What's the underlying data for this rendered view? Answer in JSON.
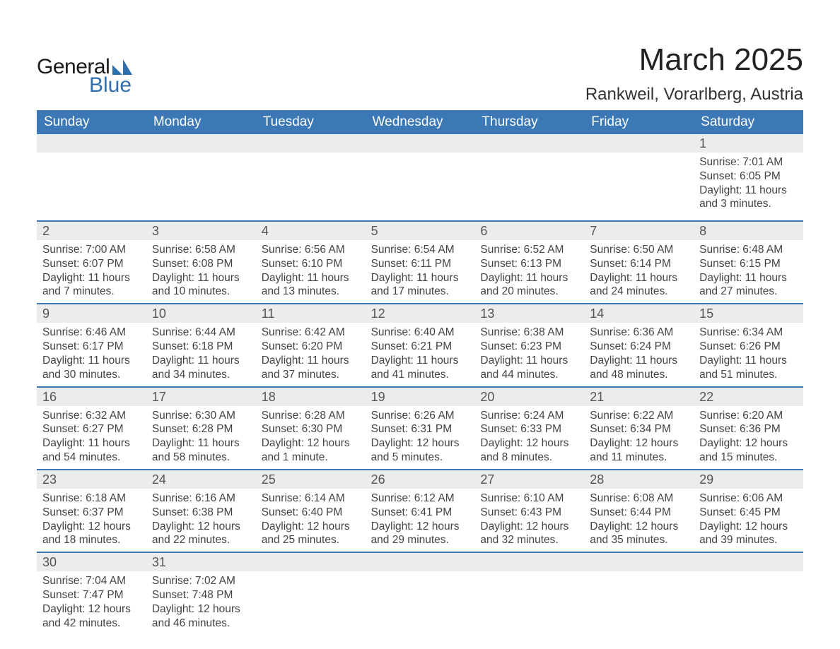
{
  "logo": {
    "text_general": "General",
    "text_blue": "Blue",
    "mark_color": "#2f6fae"
  },
  "title": "March 2025",
  "location": "Rankweil, Vorarlberg, Austria",
  "colors": {
    "header_bg": "#3b78b5",
    "header_text": "#ffffff",
    "daynum_bg": "#ececec",
    "border": "#3b78b5",
    "body_text": "#444444",
    "page_bg": "#ffffff"
  },
  "fonts": {
    "title_size_pt": 33,
    "location_size_pt": 18,
    "weekday_size_pt": 14,
    "cell_size_pt": 12
  },
  "weekdays": [
    "Sunday",
    "Monday",
    "Tuesday",
    "Wednesday",
    "Thursday",
    "Friday",
    "Saturday"
  ],
  "weeks": [
    [
      null,
      null,
      null,
      null,
      null,
      null,
      {
        "n": "1",
        "sr": "Sunrise: 7:01 AM",
        "ss": "Sunset: 6:05 PM",
        "d1": "Daylight: 11 hours",
        "d2": "and 3 minutes."
      }
    ],
    [
      {
        "n": "2",
        "sr": "Sunrise: 7:00 AM",
        "ss": "Sunset: 6:07 PM",
        "d1": "Daylight: 11 hours",
        "d2": "and 7 minutes."
      },
      {
        "n": "3",
        "sr": "Sunrise: 6:58 AM",
        "ss": "Sunset: 6:08 PM",
        "d1": "Daylight: 11 hours",
        "d2": "and 10 minutes."
      },
      {
        "n": "4",
        "sr": "Sunrise: 6:56 AM",
        "ss": "Sunset: 6:10 PM",
        "d1": "Daylight: 11 hours",
        "d2": "and 13 minutes."
      },
      {
        "n": "5",
        "sr": "Sunrise: 6:54 AM",
        "ss": "Sunset: 6:11 PM",
        "d1": "Daylight: 11 hours",
        "d2": "and 17 minutes."
      },
      {
        "n": "6",
        "sr": "Sunrise: 6:52 AM",
        "ss": "Sunset: 6:13 PM",
        "d1": "Daylight: 11 hours",
        "d2": "and 20 minutes."
      },
      {
        "n": "7",
        "sr": "Sunrise: 6:50 AM",
        "ss": "Sunset: 6:14 PM",
        "d1": "Daylight: 11 hours",
        "d2": "and 24 minutes."
      },
      {
        "n": "8",
        "sr": "Sunrise: 6:48 AM",
        "ss": "Sunset: 6:15 PM",
        "d1": "Daylight: 11 hours",
        "d2": "and 27 minutes."
      }
    ],
    [
      {
        "n": "9",
        "sr": "Sunrise: 6:46 AM",
        "ss": "Sunset: 6:17 PM",
        "d1": "Daylight: 11 hours",
        "d2": "and 30 minutes."
      },
      {
        "n": "10",
        "sr": "Sunrise: 6:44 AM",
        "ss": "Sunset: 6:18 PM",
        "d1": "Daylight: 11 hours",
        "d2": "and 34 minutes."
      },
      {
        "n": "11",
        "sr": "Sunrise: 6:42 AM",
        "ss": "Sunset: 6:20 PM",
        "d1": "Daylight: 11 hours",
        "d2": "and 37 minutes."
      },
      {
        "n": "12",
        "sr": "Sunrise: 6:40 AM",
        "ss": "Sunset: 6:21 PM",
        "d1": "Daylight: 11 hours",
        "d2": "and 41 minutes."
      },
      {
        "n": "13",
        "sr": "Sunrise: 6:38 AM",
        "ss": "Sunset: 6:23 PM",
        "d1": "Daylight: 11 hours",
        "d2": "and 44 minutes."
      },
      {
        "n": "14",
        "sr": "Sunrise: 6:36 AM",
        "ss": "Sunset: 6:24 PM",
        "d1": "Daylight: 11 hours",
        "d2": "and 48 minutes."
      },
      {
        "n": "15",
        "sr": "Sunrise: 6:34 AM",
        "ss": "Sunset: 6:26 PM",
        "d1": "Daylight: 11 hours",
        "d2": "and 51 minutes."
      }
    ],
    [
      {
        "n": "16",
        "sr": "Sunrise: 6:32 AM",
        "ss": "Sunset: 6:27 PM",
        "d1": "Daylight: 11 hours",
        "d2": "and 54 minutes."
      },
      {
        "n": "17",
        "sr": "Sunrise: 6:30 AM",
        "ss": "Sunset: 6:28 PM",
        "d1": "Daylight: 11 hours",
        "d2": "and 58 minutes."
      },
      {
        "n": "18",
        "sr": "Sunrise: 6:28 AM",
        "ss": "Sunset: 6:30 PM",
        "d1": "Daylight: 12 hours",
        "d2": "and 1 minute."
      },
      {
        "n": "19",
        "sr": "Sunrise: 6:26 AM",
        "ss": "Sunset: 6:31 PM",
        "d1": "Daylight: 12 hours",
        "d2": "and 5 minutes."
      },
      {
        "n": "20",
        "sr": "Sunrise: 6:24 AM",
        "ss": "Sunset: 6:33 PM",
        "d1": "Daylight: 12 hours",
        "d2": "and 8 minutes."
      },
      {
        "n": "21",
        "sr": "Sunrise: 6:22 AM",
        "ss": "Sunset: 6:34 PM",
        "d1": "Daylight: 12 hours",
        "d2": "and 11 minutes."
      },
      {
        "n": "22",
        "sr": "Sunrise: 6:20 AM",
        "ss": "Sunset: 6:36 PM",
        "d1": "Daylight: 12 hours",
        "d2": "and 15 minutes."
      }
    ],
    [
      {
        "n": "23",
        "sr": "Sunrise: 6:18 AM",
        "ss": "Sunset: 6:37 PM",
        "d1": "Daylight: 12 hours",
        "d2": "and 18 minutes."
      },
      {
        "n": "24",
        "sr": "Sunrise: 6:16 AM",
        "ss": "Sunset: 6:38 PM",
        "d1": "Daylight: 12 hours",
        "d2": "and 22 minutes."
      },
      {
        "n": "25",
        "sr": "Sunrise: 6:14 AM",
        "ss": "Sunset: 6:40 PM",
        "d1": "Daylight: 12 hours",
        "d2": "and 25 minutes."
      },
      {
        "n": "26",
        "sr": "Sunrise: 6:12 AM",
        "ss": "Sunset: 6:41 PM",
        "d1": "Daylight: 12 hours",
        "d2": "and 29 minutes."
      },
      {
        "n": "27",
        "sr": "Sunrise: 6:10 AM",
        "ss": "Sunset: 6:43 PM",
        "d1": "Daylight: 12 hours",
        "d2": "and 32 minutes."
      },
      {
        "n": "28",
        "sr": "Sunrise: 6:08 AM",
        "ss": "Sunset: 6:44 PM",
        "d1": "Daylight: 12 hours",
        "d2": "and 35 minutes."
      },
      {
        "n": "29",
        "sr": "Sunrise: 6:06 AM",
        "ss": "Sunset: 6:45 PM",
        "d1": "Daylight: 12 hours",
        "d2": "and 39 minutes."
      }
    ],
    [
      {
        "n": "30",
        "sr": "Sunrise: 7:04 AM",
        "ss": "Sunset: 7:47 PM",
        "d1": "Daylight: 12 hours",
        "d2": "and 42 minutes."
      },
      {
        "n": "31",
        "sr": "Sunrise: 7:02 AM",
        "ss": "Sunset: 7:48 PM",
        "d1": "Daylight: 12 hours",
        "d2": "and 46 minutes."
      },
      null,
      null,
      null,
      null,
      null
    ]
  ]
}
